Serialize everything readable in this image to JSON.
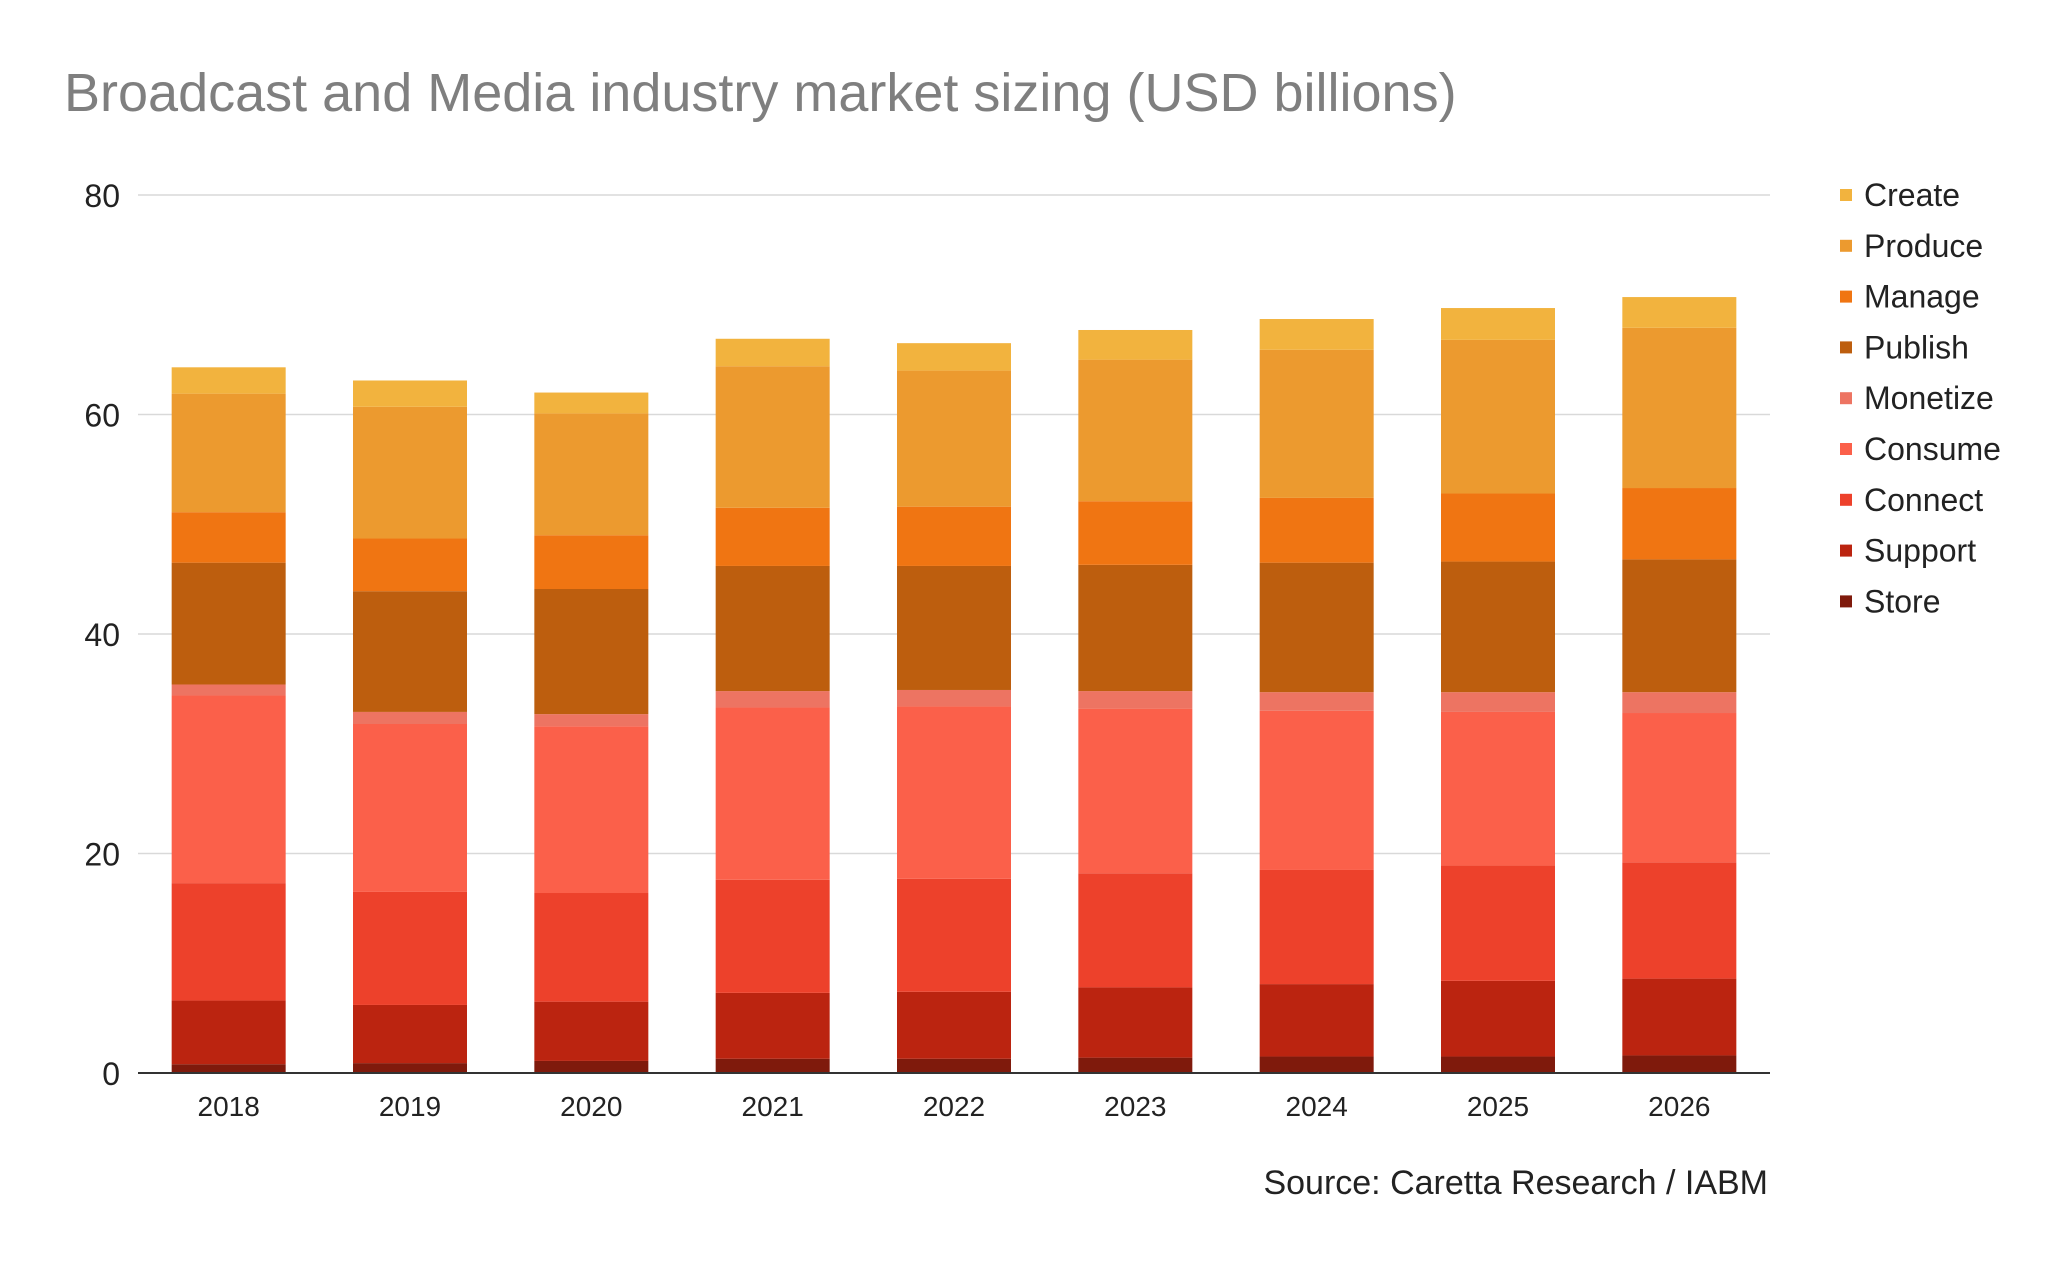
{
  "chart_data": {
    "type": "bar",
    "stacked": true,
    "title": "Broadcast and Media industry market sizing (USD billions)",
    "source": "Source: Caretta Research / IABM",
    "categories": [
      "2018",
      "2019",
      "2020",
      "2021",
      "2022",
      "2023",
      "2024",
      "2025",
      "2026"
    ],
    "ylim": [
      0,
      80
    ],
    "yticks": [
      0,
      20,
      40,
      60,
      80
    ],
    "grid": true,
    "legend_position": "right",
    "series": [
      {
        "name": "Store",
        "color": "#7f1a0c",
        "values": [
          0.8,
          0.9,
          1.1,
          1.3,
          1.3,
          1.4,
          1.5,
          1.5,
          1.6
        ]
      },
      {
        "name": "Support",
        "color": "#bb2410",
        "values": [
          5.8,
          5.3,
          5.4,
          6.0,
          6.1,
          6.4,
          6.6,
          6.9,
          7.0
        ]
      },
      {
        "name": "Connect",
        "color": "#ed412b",
        "values": [
          10.7,
          10.3,
          9.9,
          10.3,
          10.3,
          10.4,
          10.4,
          10.5,
          10.6
        ]
      },
      {
        "name": "Consume",
        "color": "#fb604a",
        "values": [
          17.1,
          15.3,
          15.2,
          15.7,
          15.7,
          15.0,
          14.5,
          14.0,
          13.6
        ]
      },
      {
        "name": "Monetize",
        "color": "#ed7462",
        "values": [
          1.0,
          1.1,
          1.1,
          1.5,
          1.5,
          1.6,
          1.7,
          1.8,
          1.9
        ]
      },
      {
        "name": "Publish",
        "color": "#bd5e0e",
        "values": [
          11.1,
          11.0,
          11.4,
          11.4,
          11.3,
          11.5,
          11.8,
          11.9,
          12.1
        ]
      },
      {
        "name": "Manage",
        "color": "#f07512",
        "values": [
          4.6,
          4.8,
          4.9,
          5.3,
          5.4,
          5.8,
          5.9,
          6.2,
          6.5
        ]
      },
      {
        "name": "Produce",
        "color": "#ec9a2f",
        "values": [
          10.8,
          12.0,
          11.1,
          12.9,
          12.4,
          12.9,
          13.5,
          14.0,
          14.6
        ]
      },
      {
        "name": "Create",
        "color": "#f2b33e",
        "values": [
          2.4,
          2.4,
          1.9,
          2.5,
          2.5,
          2.7,
          2.8,
          2.9,
          2.8
        ]
      }
    ],
    "legend_order": [
      "Create",
      "Produce",
      "Manage",
      "Publish",
      "Monetize",
      "Consume",
      "Connect",
      "Support",
      "Store"
    ]
  }
}
